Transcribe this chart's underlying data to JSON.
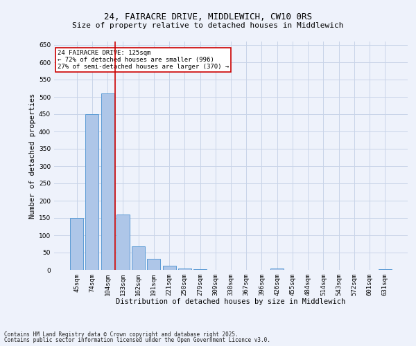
{
  "title_line1": "24, FAIRACRE DRIVE, MIDDLEWICH, CW10 0RS",
  "title_line2": "Size of property relative to detached houses in Middlewich",
  "xlabel": "Distribution of detached houses by size in Middlewich",
  "ylabel": "Number of detached properties",
  "categories": [
    "45sqm",
    "74sqm",
    "104sqm",
    "133sqm",
    "162sqm",
    "191sqm",
    "221sqm",
    "250sqm",
    "279sqm",
    "309sqm",
    "338sqm",
    "367sqm",
    "396sqm",
    "426sqm",
    "455sqm",
    "484sqm",
    "514sqm",
    "543sqm",
    "572sqm",
    "601sqm",
    "631sqm"
  ],
  "values": [
    150,
    450,
    510,
    160,
    68,
    32,
    12,
    5,
    3,
    0,
    0,
    0,
    0,
    5,
    0,
    0,
    0,
    0,
    0,
    0,
    3
  ],
  "bar_color": "#aec6e8",
  "bar_edge_color": "#5b9bd5",
  "vline_x": 2.5,
  "vline_color": "#cc0000",
  "annotation_text": "24 FAIRACRE DRIVE: 125sqm\n← 72% of detached houses are smaller (996)\n27% of semi-detached houses are larger (370) →",
  "annotation_box_color": "#ffffff",
  "annotation_box_edge_color": "#cc0000",
  "ylim": [
    0,
    660
  ],
  "yticks": [
    0,
    50,
    100,
    150,
    200,
    250,
    300,
    350,
    400,
    450,
    500,
    550,
    600,
    650
  ],
  "background_color": "#eef2fb",
  "grid_color": "#c8d4e8",
  "footer_line1": "Contains HM Land Registry data © Crown copyright and database right 2025.",
  "footer_line2": "Contains public sector information licensed under the Open Government Licence v3.0.",
  "title_fontsize": 9,
  "subtitle_fontsize": 8,
  "axis_label_fontsize": 7.5,
  "tick_fontsize": 6.5,
  "annotation_fontsize": 6.5,
  "footer_fontsize": 5.5
}
